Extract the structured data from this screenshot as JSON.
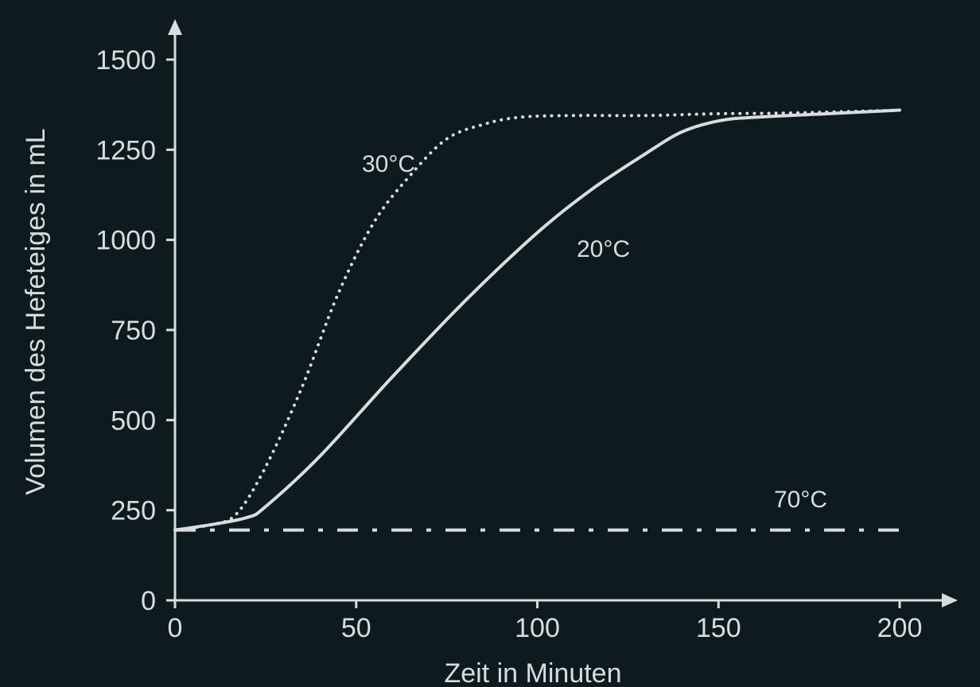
{
  "chart_data": {
    "type": "line",
    "title": "",
    "xlabel": "Zeit in Minuten",
    "ylabel": "Volumen des Hefeteiges in mL",
    "xlim": [
      0,
      200
    ],
    "ylim": [
      0,
      1500
    ],
    "xticks": [
      "0",
      "50",
      "100",
      "150",
      "200"
    ],
    "yticks": [
      "0",
      "250",
      "500",
      "750",
      "1000",
      "1250",
      "1500"
    ],
    "grid": false,
    "colors": {
      "background": "#0d1a1e",
      "foreground": "#d9dcdc"
    },
    "series": [
      {
        "name": "30°C",
        "style": "dotted",
        "x": [
          0,
          10,
          17,
          25,
          35,
          45,
          55,
          65,
          75,
          85,
          95,
          110,
          130,
          150,
          170,
          200
        ],
        "y": [
          195,
          210,
          240,
          370,
          590,
          850,
          1050,
          1180,
          1280,
          1320,
          1340,
          1345,
          1345,
          1350,
          1352,
          1360
        ]
      },
      {
        "name": "20°C",
        "style": "solid",
        "x": [
          0,
          10,
          20,
          25,
          40,
          60,
          80,
          100,
          115,
          130,
          140,
          150,
          160,
          180,
          200
        ],
        "y": [
          195,
          210,
          230,
          260,
          400,
          620,
          830,
          1020,
          1140,
          1240,
          1300,
          1330,
          1340,
          1350,
          1360
        ]
      },
      {
        "name": "70°C",
        "style": "dashdot",
        "x": [
          0,
          200
        ],
        "y": [
          195,
          195
        ]
      }
    ]
  }
}
